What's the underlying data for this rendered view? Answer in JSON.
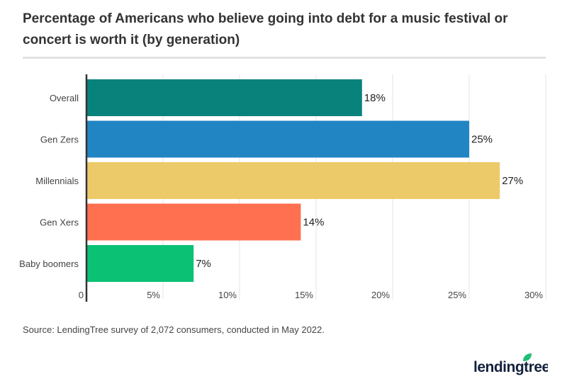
{
  "title": "Percentage of Americans who believe going into debt for a music festival or concert is worth it (by generation)",
  "source": "Source: LendingTree survey of 2,072 consumers, conducted in May 2022.",
  "logo": "lendingtree",
  "chart_data": {
    "type": "bar",
    "orientation": "horizontal",
    "categories": [
      "Overall",
      "Gen Zers",
      "Millennials",
      "Gen Xers",
      "Baby boomers"
    ],
    "values": [
      18,
      25,
      27,
      14,
      7
    ],
    "data_labels": [
      "18%",
      "25%",
      "27%",
      "14%",
      "7%"
    ],
    "colors": [
      "#0a827c",
      "#2185c3",
      "#ecca69",
      "#ff7051",
      "#0bc274"
    ],
    "xlim": [
      0,
      30
    ],
    "x_ticks": [
      0,
      5,
      10,
      15,
      20,
      25,
      30
    ],
    "x_tick_labels": [
      "0",
      "5%",
      "10%",
      "15%",
      "20%",
      "25%",
      "30%"
    ],
    "grid": true,
    "xlabel": "",
    "ylabel": ""
  }
}
